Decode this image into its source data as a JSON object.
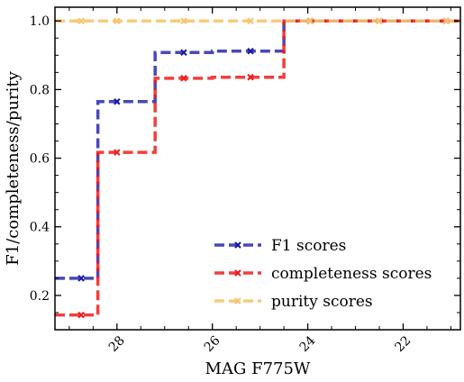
{
  "chart_data": {
    "type": "line",
    "title": "",
    "xlabel": "MAG F775W",
    "ylabel": "F1/completeness/purity",
    "xlim": [
      29.3,
      20.8
    ],
    "ylim": [
      0.1,
      1.04
    ],
    "x_ticks": [
      {
        "value": 28,
        "label": "28"
      },
      {
        "value": 26,
        "label": "26"
      },
      {
        "value": 24,
        "label": "24"
      },
      {
        "value": 22,
        "label": "22"
      }
    ],
    "y_ticks": [
      {
        "value": 0.2,
        "label": "0.2"
      },
      {
        "value": 0.4,
        "label": "0.4"
      },
      {
        "value": 0.6,
        "label": "0.6"
      },
      {
        "value": 0.8,
        "label": "0.8"
      },
      {
        "value": 1.0,
        "label": "1.0"
      }
    ],
    "x": [
      28.75,
      28.0,
      26.6,
      25.2,
      23.95,
      22.5,
      21.1
    ],
    "bin_edges": [
      29.3,
      28.4,
      27.2,
      26.0,
      24.5,
      23.3,
      21.7,
      20.8
    ],
    "legend_position": "lower right",
    "series": [
      {
        "name": "F1 scores",
        "values": [
          0.25,
          0.765,
          0.908,
          0.912,
          1.0,
          1.0,
          1.0
        ],
        "color": "#1a1aa8"
      },
      {
        "name": "completeness scores",
        "values": [
          0.143,
          0.617,
          0.833,
          0.836,
          1.0,
          1.0,
          1.0
        ],
        "color": "#ee1c1c"
      },
      {
        "name": "purity scores",
        "values": [
          1.0,
          1.0,
          1.0,
          1.0,
          1.0,
          1.0,
          1.0
        ],
        "color": "#f7c46c"
      }
    ]
  }
}
